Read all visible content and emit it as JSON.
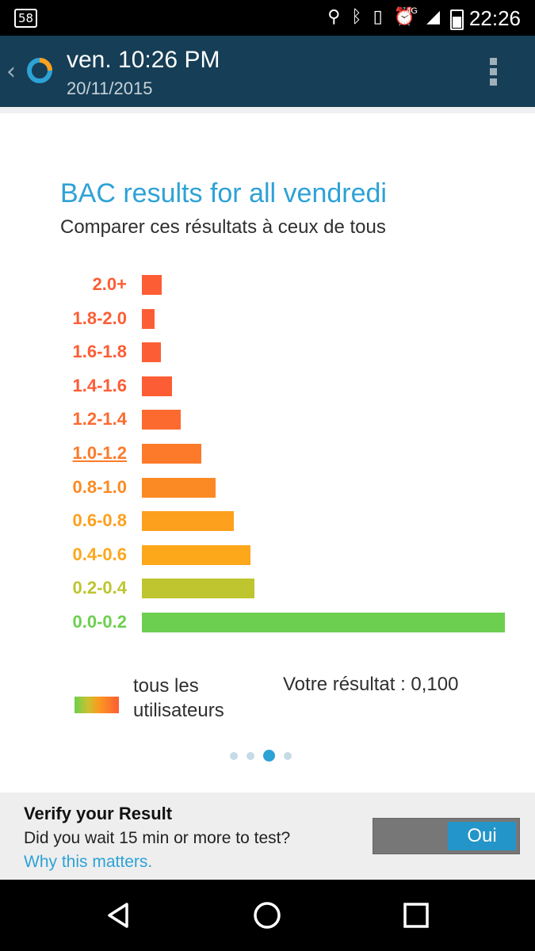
{
  "status_bar": {
    "notification_count": "58",
    "network": "4G",
    "time": "22:26"
  },
  "app_bar": {
    "title": "ven. 10:26 PM",
    "subtitle": "20/11/2015",
    "logo_icon": "donut-logo-icon",
    "menu_icon": "overflow-menu-icon"
  },
  "chart_data": {
    "type": "bar",
    "orientation": "horizontal",
    "title": "BAC results for all vendredi",
    "subtitle": "Comparer ces résultats à ceux de tous",
    "categories": [
      "2.0+",
      "1.8-2.0",
      "1.6-1.8",
      "1.4-1.6",
      "1.2-1.4",
      "1.0-1.2",
      "0.8-1.0",
      "0.6-0.8",
      "0.4-0.6",
      "0.2-0.4",
      "0.0-0.2"
    ],
    "values": [
      5.5,
      3.5,
      5.3,
      8.3,
      10.7,
      16.3,
      20.3,
      25.3,
      30,
      31,
      100
    ],
    "colors": [
      "#fd5d34",
      "#fd5d34",
      "#fd5d34",
      "#fd5d34",
      "#fd6a2f",
      "#fc7a2a",
      "#fc8a24",
      "#fda01d",
      "#fda71b",
      "#bec52f",
      "#6dcf50"
    ],
    "highlighted_category": "1.0-1.2"
  },
  "legend": {
    "label": "tous les utilisateurs",
    "result": "Votre résultat : 0,100"
  },
  "pager": {
    "count": 4,
    "active": 2
  },
  "verify": {
    "title": "Verify your Result",
    "question": "Did you wait 15 min or more to test?",
    "link": "Why this matters.",
    "toggle_label": "Oui"
  },
  "nav": {
    "back_icon": "back-triangle-icon",
    "home_icon": "home-circle-icon",
    "recents_icon": "recents-square-icon"
  }
}
